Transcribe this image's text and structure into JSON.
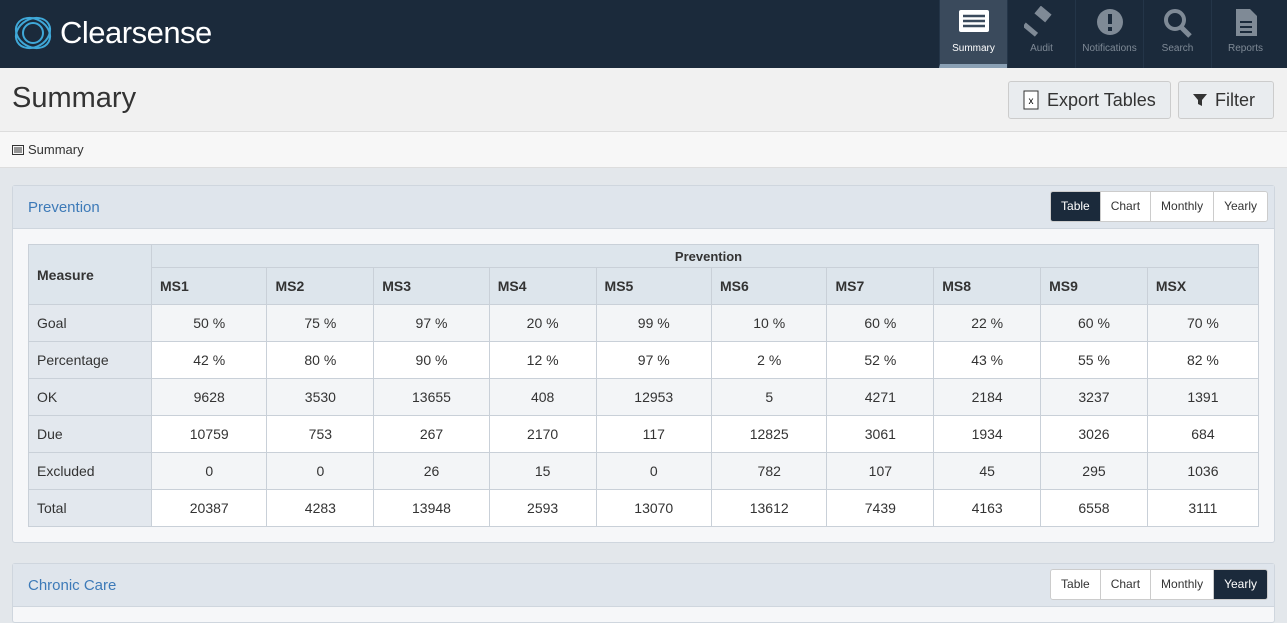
{
  "header": {
    "logo": "Clearsense",
    "nav": [
      "Summary",
      "Audit",
      "Notifications",
      "Search",
      "Reports"
    ]
  },
  "page": {
    "title": "Summary",
    "buttons": [
      "Export Tables",
      "Filter"
    ],
    "breadcrumb": "Summary"
  },
  "panels": [
    {
      "title": "Prevention",
      "views": [
        "Table",
        "Chart",
        "Monthly",
        "Yearly"
      ],
      "table": {
        "corner": "Measure",
        "group": "Prevention",
        "columns": [
          "MS1",
          "MS2",
          "MS3",
          "MS4",
          "MS5",
          "MS6",
          "MS7",
          "MS8",
          "MS9",
          "MSX"
        ],
        "rows": [
          {
            "label": "Goal",
            "cells": [
              "50 %",
              "75 %",
              "97 %",
              "20 %",
              "99 %",
              "10 %",
              "60 %",
              "22 %",
              "60 %",
              "70 %"
            ]
          },
          {
            "label": "Percentage",
            "cells": [
              "42 %",
              "80 %",
              "90 %",
              "12 %",
              "97 %",
              "2 %",
              "52 %",
              "43 %",
              "55 %",
              "82 %"
            ]
          },
          {
            "label": "OK",
            "cells": [
              "9628",
              "3530",
              "13655",
              "408",
              "12953",
              "5",
              "4271",
              "2184",
              "3237",
              "1391"
            ]
          },
          {
            "label": "Due",
            "cells": [
              "10759",
              "753",
              "267",
              "2170",
              "117",
              "12825",
              "3061",
              "1934",
              "3026",
              "684"
            ]
          },
          {
            "label": "Excluded",
            "cells": [
              "0",
              "0",
              "26",
              "15",
              "0",
              "782",
              "107",
              "45",
              "295",
              "1036"
            ]
          },
          {
            "label": "Total",
            "cells": [
              "20387",
              "4283",
              "13948",
              "2593",
              "13070",
              "13612",
              "7439",
              "4163",
              "6558",
              "3111"
            ]
          }
        ]
      }
    },
    {
      "title": "Chronic Care",
      "views": [
        "Table",
        "Chart",
        "Monthly",
        "Yearly"
      ]
    }
  ]
}
